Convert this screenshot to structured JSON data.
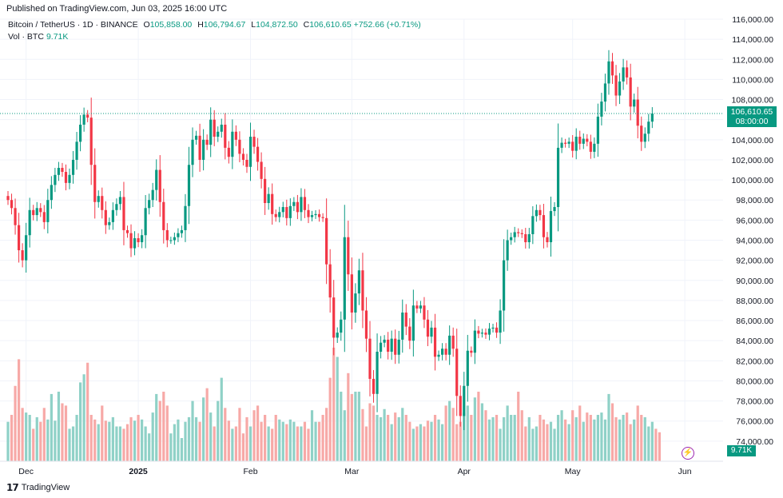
{
  "published": "Published on TradingView.com, Jun 03, 2025 16:00 UTC",
  "legend": {
    "symbol": "Bitcoin / TetherUS · 1D · BINANCE",
    "open_label": "O",
    "open": "105,858.00",
    "high_label": "H",
    "high": "106,794.67",
    "low_label": "L",
    "low": "104,872.50",
    "close_label": "C",
    "close": "106,610.65",
    "change": "+752.66 (+0.71%)"
  },
  "volume": {
    "label": "Vol · BTC",
    "value": "9.71K"
  },
  "price_tag": {
    "price": "106,610.65",
    "countdown": "08:00:00"
  },
  "volume_tag": "9.71K",
  "brand": "TradingView",
  "colors": {
    "up": "#089981",
    "down": "#f23645",
    "vol_up": "#8fd1c7",
    "vol_down": "#f7a9a7",
    "grid": "#f0f3fa"
  },
  "chart_data": {
    "type": "candlestick",
    "y_axis": {
      "min": 72000,
      "max": 116000,
      "ticks": [
        74000,
        76000,
        78000,
        80000,
        82000,
        84000,
        86000,
        88000,
        90000,
        92000,
        94000,
        96000,
        98000,
        100000,
        102000,
        104000,
        106000,
        108000,
        110000,
        112000,
        114000,
        116000
      ]
    },
    "y_tick_labels": [
      "74,000.00",
      "76,000.00",
      "78,000.00",
      "80,000.00",
      "82,000.00",
      "84,000.00",
      "86,000.00",
      "88,000.00",
      "90,000.00",
      "92,000.00",
      "94,000.00",
      "96,000.00",
      "98,000.00",
      "100,000.00",
      "102,000.00",
      "104,000.00",
      "106,000.00",
      "108,000.00",
      "110,000.00",
      "112,000.00",
      "114,000.00",
      "116,000.00"
    ],
    "x_tick_labels": [
      {
        "label": "Dec",
        "bar": 5
      },
      {
        "label": "2025",
        "bar": 36
      },
      {
        "label": "Feb",
        "bar": 67
      },
      {
        "label": "Mar",
        "bar": 95
      },
      {
        "label": "Apr",
        "bar": 126
      },
      {
        "label": "May",
        "bar": 156
      },
      {
        "label": "Jun",
        "bar": 187
      }
    ],
    "last_price": 106610.65,
    "close_series": [
      98000,
      97200,
      95500,
      93000,
      92000,
      94500,
      97000,
      96500,
      97200,
      96800,
      95800,
      98000,
      99500,
      100500,
      101200,
      100800,
      99700,
      100500,
      102000,
      103800,
      105500,
      106500,
      106200,
      101500,
      97800,
      98400,
      97000,
      95500,
      95800,
      97000,
      97600,
      98300,
      95000,
      94700,
      93200,
      94200,
      93800,
      94500,
      97200,
      98000,
      99000,
      101000,
      97800,
      95000,
      94000,
      94000,
      94300,
      94700,
      95000,
      97400,
      101500,
      104000,
      104400,
      102000,
      104000,
      103500,
      106000,
      104300,
      104800,
      105500,
      103200,
      102300,
      104800,
      104000,
      102600,
      102000,
      101300,
      104300,
      103300,
      101800,
      100100,
      97700,
      98600,
      96600,
      96300,
      96800,
      97300,
      96200,
      97400,
      97800,
      96800,
      98300,
      97000,
      96300,
      96500,
      96600,
      96300,
      96200,
      91600,
      88300,
      84300,
      84800,
      86100,
      94300,
      90600,
      86800,
      88700,
      91000,
      87000,
      84200,
      80200,
      78700,
      82900,
      83800,
      84100,
      82900,
      84200,
      82600,
      84100,
      86800,
      85400,
      84000,
      87500,
      87200,
      87500,
      86100,
      84400,
      85300,
      82400,
      82600,
      83200,
      82600,
      84500,
      83200,
      78500,
      76500,
      79500,
      83000,
      82800,
      85000,
      84700,
      84800,
      84600,
      85200,
      85300,
      84800,
      87000,
      92000,
      94000,
      94300,
      94800,
      94700,
      94600,
      93800,
      94600,
      96400,
      97000,
      96500,
      94300,
      93800,
      96900,
      97300,
      103200,
      103700,
      103600,
      103800,
      102900,
      104300,
      103600,
      104100,
      103800,
      102800,
      103600,
      106300,
      107800,
      109600,
      111800,
      110400,
      108400,
      109800,
      111200,
      110200,
      107300,
      108000,
      105400,
      103800,
      104600,
      105800,
      106610
    ],
    "volume_series": [
      34,
      40,
      65,
      88,
      46,
      42,
      40,
      28,
      38,
      34,
      46,
      36,
      58,
      35,
      60,
      50,
      48,
      28,
      30,
      40,
      68,
      75,
      85,
      40,
      36,
      32,
      48,
      35,
      34,
      38,
      30,
      30,
      28,
      32,
      38,
      35,
      40,
      36,
      30,
      24,
      42,
      58,
      52,
      60,
      48,
      24,
      32,
      36,
      20,
      34,
      38,
      52,
      38,
      34,
      55,
      63,
      42,
      30,
      52,
      72,
      46,
      35,
      28,
      30,
      46,
      24,
      38,
      30,
      44,
      48,
      34,
      40,
      30,
      28,
      40,
      36,
      34,
      32,
      36,
      34,
      30,
      30,
      34,
      28,
      44,
      34,
      34,
      40,
      46,
      72,
      98,
      90,
      60,
      44,
      76,
      58,
      60,
      60,
      45,
      30,
      50,
      48,
      40,
      38,
      45,
      40,
      32,
      42,
      38,
      46,
      40,
      34,
      28,
      30,
      32,
      30,
      35,
      34,
      40,
      36,
      32,
      48,
      52,
      46,
      32,
      34,
      42,
      48,
      40,
      55,
      60,
      50,
      44,
      36,
      38,
      40,
      28,
      38,
      48,
      40,
      40,
      60,
      44,
      30,
      38,
      28,
      30,
      40,
      36,
      32,
      34,
      28,
      40,
      44,
      36,
      32,
      44,
      38,
      48,
      34,
      42,
      40,
      36,
      40,
      42,
      36,
      58,
      50,
      38,
      36,
      40,
      42,
      32,
      36,
      48,
      40,
      38,
      30,
      34,
      28,
      25
    ]
  }
}
